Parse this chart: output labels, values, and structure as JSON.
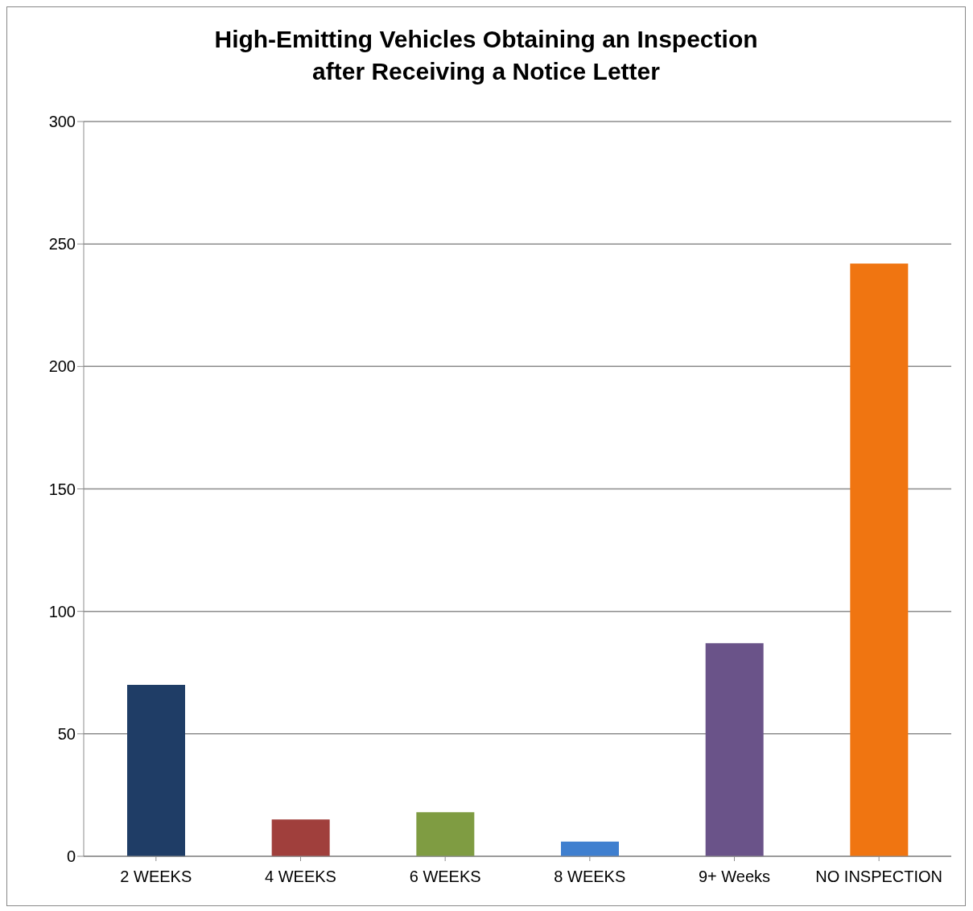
{
  "chart_data": {
    "type": "bar",
    "title": "High-Emitting Vehicles Obtaining an Inspection\nafter Receiving a Notice Letter",
    "categories": [
      "2 WEEKS",
      "4 WEEKS",
      "6 WEEKS",
      "8 WEEKS",
      "9+ Weeks",
      "NO INSPECTION"
    ],
    "values": [
      70,
      15,
      18,
      6,
      87,
      242
    ],
    "colors": [
      "#1f3d66",
      "#a03f3c",
      "#7f9c42",
      "#3f7fcf",
      "#6a5389",
      "#f07511"
    ],
    "ylim": [
      0,
      300
    ],
    "yticks": [
      0,
      50,
      100,
      150,
      200,
      250,
      300
    ],
    "grid": "y",
    "legend": false
  }
}
